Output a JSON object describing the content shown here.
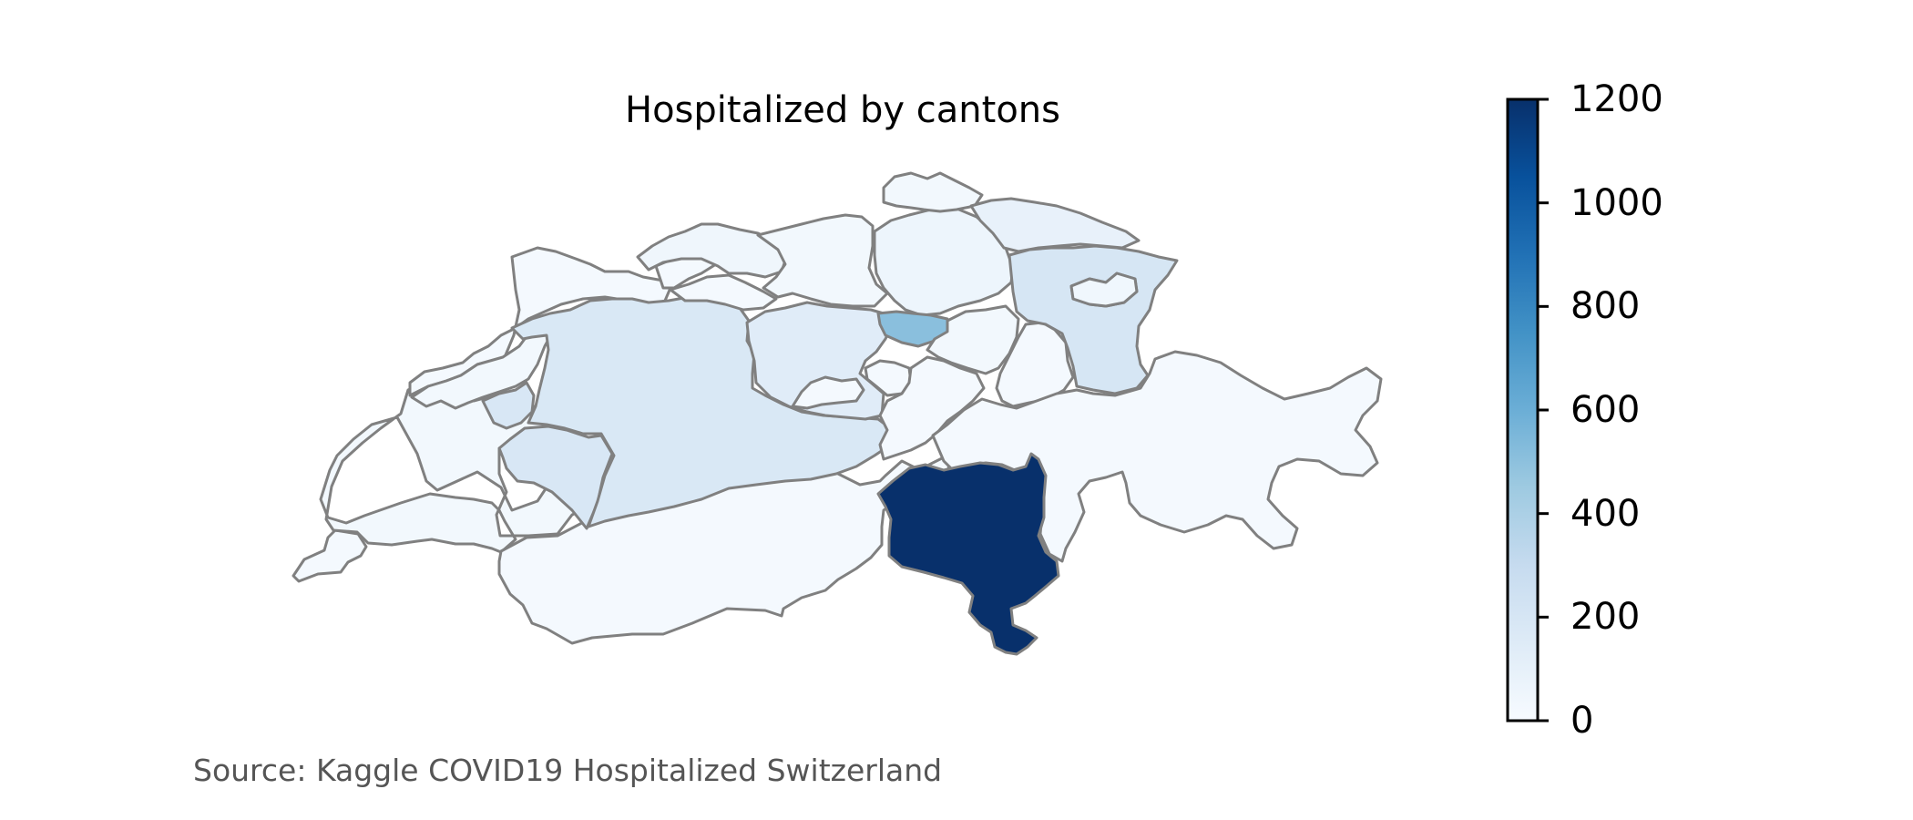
{
  "title": "Hospitalized by cantons",
  "source": "Source: Kaggle COVID19 Hospitalized Switzerland",
  "colorbar": {
    "colormap": "Blues",
    "min": 0,
    "max": 1200,
    "ticks": [
      0,
      200,
      400,
      600,
      800,
      1000,
      1200
    ],
    "tick_labels": [
      "0",
      "200",
      "400",
      "600",
      "800",
      "1000",
      "1200"
    ],
    "stops": [
      "#f7fbff",
      "#deebf7",
      "#c6dbef",
      "#9ecae1",
      "#6baed6",
      "#4292c6",
      "#2171b5",
      "#08519c",
      "#08306b"
    ]
  },
  "colors": {
    "border": "#808080",
    "background": "#ffffff"
  },
  "map_data": {
    "variable": "hospitalized",
    "regions": [
      {
        "region": "geneva",
        "value": 20
      },
      {
        "region": "vaud",
        "value": 30
      },
      {
        "region": "valais",
        "value": 20
      },
      {
        "region": "jura",
        "value": 20
      },
      {
        "region": "neuchatel",
        "value": 30
      },
      {
        "region": "fribourg",
        "value": 190
      },
      {
        "region": "bern",
        "value": 180
      },
      {
        "region": "solothurn",
        "value": 20
      },
      {
        "region": "basel",
        "value": 50
      },
      {
        "region": "aargau",
        "value": 30
      },
      {
        "region": "zurich",
        "value": 60
      },
      {
        "region": "lucerne",
        "value": 140
      },
      {
        "region": "zug",
        "value": 510
      },
      {
        "region": "central",
        "value": 20
      },
      {
        "region": "schwyz",
        "value": 30
      },
      {
        "region": "uri",
        "value": 20
      },
      {
        "region": "glarus",
        "value": 20
      },
      {
        "region": "schaffhausen",
        "value": 30
      },
      {
        "region": "thurgau",
        "value": 90
      },
      {
        "region": "st-gallen",
        "value": 200
      },
      {
        "region": "appenzell",
        "value": 40
      },
      {
        "region": "graubunden",
        "value": 20
      },
      {
        "region": "ticino",
        "value": 1200
      }
    ]
  }
}
